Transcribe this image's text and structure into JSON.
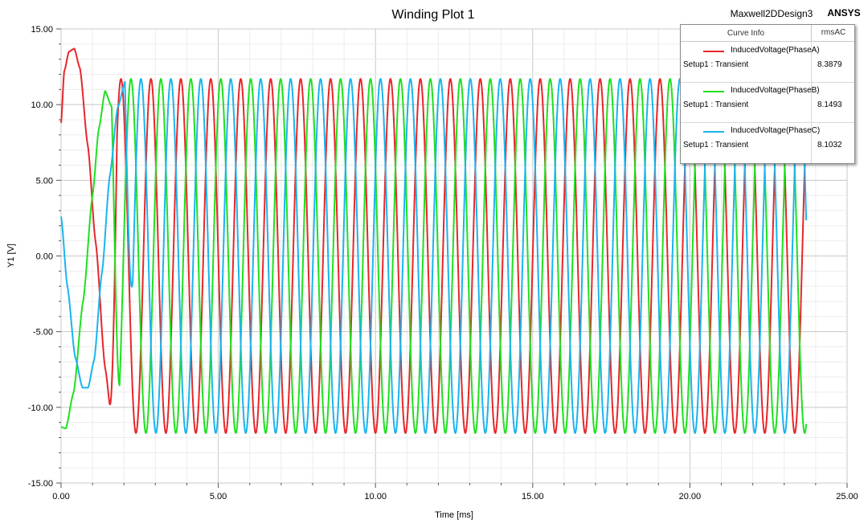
{
  "header": {
    "title": "Winding Plot 1",
    "design": "Maxwell2DDesign3",
    "brand": "ANSYS"
  },
  "chart_data": {
    "type": "line",
    "title": "Winding Plot 1",
    "xlabel": "Time [ms]",
    "ylabel": "Y1 [V]",
    "xlim": [
      0,
      25
    ],
    "ylim": [
      -15,
      15
    ],
    "xticks": [
      "0.00",
      "5.00",
      "10.00",
      "15.00",
      "20.00",
      "25.00"
    ],
    "yticks": [
      "-15.00",
      "-10.00",
      "-5.00",
      "0.00",
      "5.00",
      "10.00",
      "15.00"
    ],
    "grid": true,
    "legend_position": "top-right",
    "x_end": 23.7,
    "period_ms": 0.9524,
    "amplitude": 11.7,
    "series": [
      {
        "name": "InducedVoltage(PhaseA)",
        "color": "#e8262a",
        "phase_deg": 90,
        "startup_points": [
          [
            0,
            8.8
          ],
          [
            0.1,
            12.2
          ],
          [
            0.25,
            13.5
          ],
          [
            0.42,
            13.7
          ],
          [
            0.6,
            12.4
          ],
          [
            0.85,
            7.3
          ],
          [
            1.1,
            0.9
          ],
          [
            1.4,
            -7.4
          ],
          [
            1.6,
            -10.6
          ],
          [
            1.78,
            -11.7
          ]
        ]
      },
      {
        "name": "InducedVoltage(PhaseB)",
        "color": "#1fe01f",
        "phase_deg": -30,
        "startup_points": [
          [
            0,
            -11.3
          ],
          [
            0.15,
            -11.4
          ],
          [
            0.4,
            -9.0
          ],
          [
            0.7,
            -3.0
          ],
          [
            1.0,
            4.0
          ],
          [
            1.2,
            8.4
          ],
          [
            1.4,
            10.9
          ],
          [
            1.6,
            9.9
          ],
          [
            1.86,
            4.7
          ]
        ]
      },
      {
        "name": "InducedVoltage(PhaseC)",
        "color": "#1ab4ee",
        "phase_deg": 210,
        "startup_points": [
          [
            0,
            2.6
          ],
          [
            0.2,
            -2.0
          ],
          [
            0.45,
            -6.7
          ],
          [
            0.68,
            -8.7
          ],
          [
            0.86,
            -8.7
          ],
          [
            1.05,
            -6.9
          ],
          [
            1.3,
            -1.1
          ],
          [
            1.55,
            5.3
          ],
          [
            1.8,
            9.8
          ],
          [
            2.05,
            11.6
          ],
          [
            2.28,
            11.7
          ]
        ]
      }
    ]
  },
  "legend": {
    "col_curve": "Curve Info",
    "col_value": "rmsAC",
    "entries": [
      {
        "name": "InducedVoltage(PhaseA)",
        "setup": "Setup1 : Transient",
        "value": "8.3879",
        "color": "#e8262a"
      },
      {
        "name": "InducedVoltage(PhaseB)",
        "setup": "Setup1 : Transient",
        "value": "8.1493",
        "color": "#1fe01f"
      },
      {
        "name": "InducedVoltage(PhaseC)",
        "setup": "Setup1 : Transient",
        "value": "8.1032",
        "color": "#1ab4ee"
      }
    ]
  }
}
